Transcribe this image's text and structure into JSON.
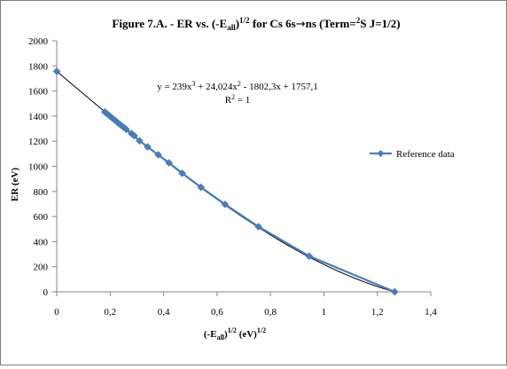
{
  "chart_data": {
    "type": "scatter",
    "title": {
      "prefix": "Figure 7.A. - ER vs. (-E",
      "sub": "all",
      "close": ")",
      "sup": "1/2",
      "mid": " for Cs 6s",
      "arrow": "→",
      "mid2": "ns (Term=",
      "term_sup": "2",
      "suffix": "S J=1/2)"
    },
    "xlabel": {
      "prefix": "(-E",
      "sub": "all",
      "close": ")",
      "sup1": "1/2",
      "unit": " (eV)",
      "sup2": "1/2"
    },
    "ylabel": "ER (eV)",
    "xlim": [
      0,
      1.4
    ],
    "ylim": [
      0,
      2000
    ],
    "x_ticks": [
      0,
      0.2,
      0.4,
      0.6,
      0.8,
      1,
      1.2,
      1.4
    ],
    "x_tick_labels": [
      "0",
      "0,2",
      "0,4",
      "0,6",
      "0,8",
      "1",
      "1,2",
      "1,4"
    ],
    "y_ticks": [
      0,
      200,
      400,
      600,
      800,
      1000,
      1200,
      1400,
      1600,
      1800,
      2000
    ],
    "y_tick_labels": [
      "0",
      "200",
      "400",
      "600",
      "800",
      "1000",
      "1200",
      "1400",
      "1600",
      "1800",
      "2000"
    ],
    "grid": false,
    "legend_position": "right",
    "series": [
      {
        "name": "Reference data",
        "color": "#4a7ebb",
        "marker": "diamond",
        "x": [
          0,
          0.18,
          0.19,
          0.2,
          0.21,
          0.22,
          0.23,
          0.24,
          0.25,
          0.26,
          0.28,
          0.29,
          0.31,
          0.34,
          0.38,
          0.42,
          0.47,
          0.54,
          0.63,
          0.755,
          0.945,
          1.265
        ],
        "y": [
          1757,
          1433,
          1416,
          1398,
          1380,
          1363,
          1345,
          1328,
          1312,
          1294,
          1261,
          1244,
          1203,
          1155,
          1092,
          1028,
          944,
          833,
          697,
          519,
          284,
          0
        ]
      }
    ],
    "trendline": {
      "type": "polynomial",
      "order": 3,
      "color": "#000000",
      "coefficients": [
        239,
        24.024,
        -1802.3,
        1757.1
      ],
      "equation": {
        "p1": "y = 239x",
        "s1": "3",
        "p2": " + 24,024x",
        "s2": "2",
        "p3": " - 1802,3x + 1757,1"
      },
      "r_squared": {
        "p1": "R",
        "s1": "2",
        "p2": " = 1"
      }
    }
  }
}
